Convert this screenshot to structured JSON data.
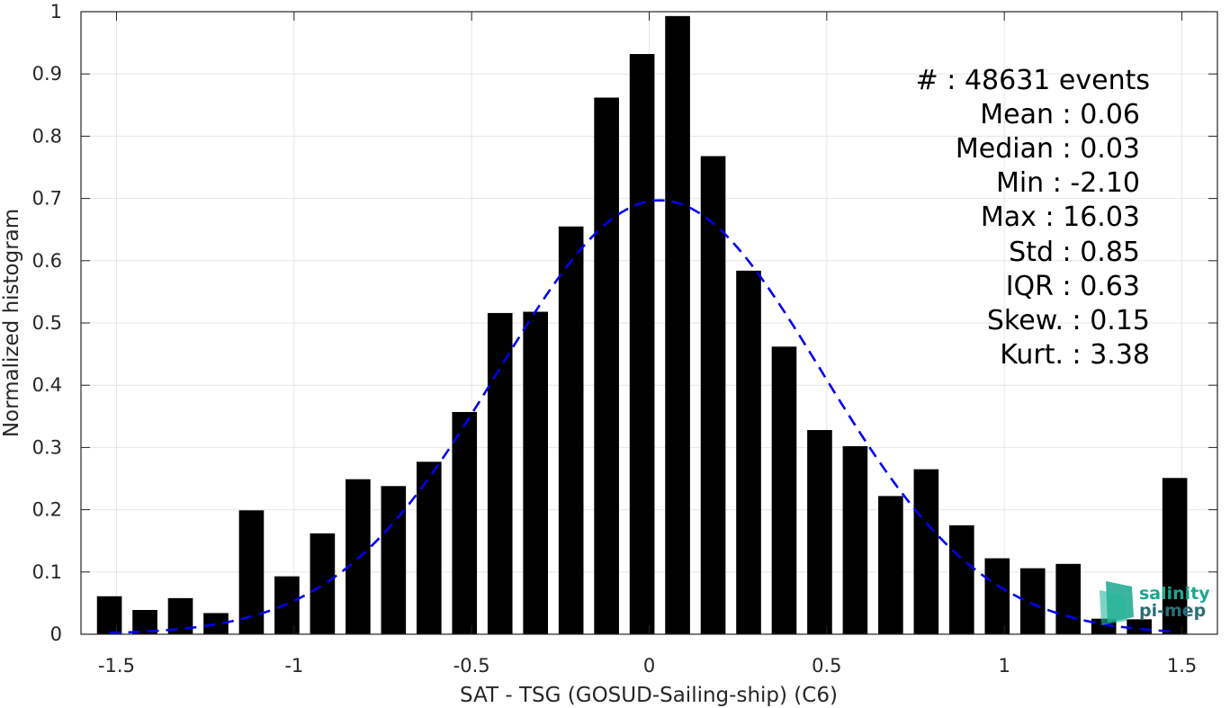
{
  "chart_data": {
    "type": "bar",
    "xlabel": "SAT - TSG (GOSUD-Sailing-ship) (C6)",
    "ylabel": "Normalized histogram",
    "xlim": [
      -1.6,
      1.6
    ],
    "ylim": [
      0,
      1
    ],
    "grid": true,
    "x_ticks": [
      -1.5,
      -1,
      -0.5,
      0,
      0.5,
      1,
      1.5
    ],
    "x_tick_labels": [
      "-1.5",
      "-1",
      "-0.5",
      "0",
      "0.5",
      "1",
      "1.5"
    ],
    "y_ticks": [
      0,
      0.1,
      0.2,
      0.3,
      0.4,
      0.5,
      0.6,
      0.7,
      0.8,
      0.9,
      1
    ],
    "y_tick_labels": [
      "0",
      "0.1",
      "0.2",
      "0.3",
      "0.4",
      "0.5",
      "0.6",
      "0.7",
      "0.8",
      "0.9",
      "1"
    ],
    "bin_width": 0.1,
    "bar_color": "#000000",
    "bins": [
      {
        "x": -1.52,
        "value": 0.061
      },
      {
        "x": -1.42,
        "value": 0.039
      },
      {
        "x": -1.32,
        "value": 0.058
      },
      {
        "x": -1.22,
        "value": 0.034
      },
      {
        "x": -1.12,
        "value": 0.199
      },
      {
        "x": -1.02,
        "value": 0.093
      },
      {
        "x": -0.92,
        "value": 0.162
      },
      {
        "x": -0.82,
        "value": 0.249
      },
      {
        "x": -0.72,
        "value": 0.238
      },
      {
        "x": -0.62,
        "value": 0.277
      },
      {
        "x": -0.52,
        "value": 0.357
      },
      {
        "x": -0.42,
        "value": 0.516
      },
      {
        "x": -0.32,
        "value": 0.518
      },
      {
        "x": -0.22,
        "value": 0.655
      },
      {
        "x": -0.12,
        "value": 0.862
      },
      {
        "x": -0.02,
        "value": 0.932
      },
      {
        "x": 0.08,
        "value": 0.993
      },
      {
        "x": 0.18,
        "value": 0.768
      },
      {
        "x": 0.28,
        "value": 0.584
      },
      {
        "x": 0.38,
        "value": 0.462
      },
      {
        "x": 0.48,
        "value": 0.328
      },
      {
        "x": 0.58,
        "value": 0.302
      },
      {
        "x": 0.68,
        "value": 0.222
      },
      {
        "x": 0.78,
        "value": 0.265
      },
      {
        "x": 0.88,
        "value": 0.175
      },
      {
        "x": 0.98,
        "value": 0.122
      },
      {
        "x": 1.08,
        "value": 0.106
      },
      {
        "x": 1.18,
        "value": 0.113
      },
      {
        "x": 1.28,
        "value": 0.025
      },
      {
        "x": 1.38,
        "value": 0.024
      },
      {
        "x": 1.48,
        "value": 0.251
      }
    ],
    "fit_curve": {
      "type": "gaussian",
      "style": "dashed",
      "color": "#0000ee",
      "mean": 0.03,
      "std": 0.455,
      "peak": 0.697,
      "x_range": [
        -1.52,
        1.48
      ]
    },
    "stats": [
      "#  : 48631 events",
      "Mean : 0.06",
      "Median : 0.03",
      "Min : -2.10",
      "Max : 16.03",
      "Std : 0.85",
      "IQR : 0.63",
      "Skew. : 0.15",
      "Kurt. : 3.38"
    ]
  },
  "logo": {
    "line1": "salinity",
    "line2": "pi-mep",
    "color1": "#1aa88f",
    "color2": "#2a6f78"
  }
}
